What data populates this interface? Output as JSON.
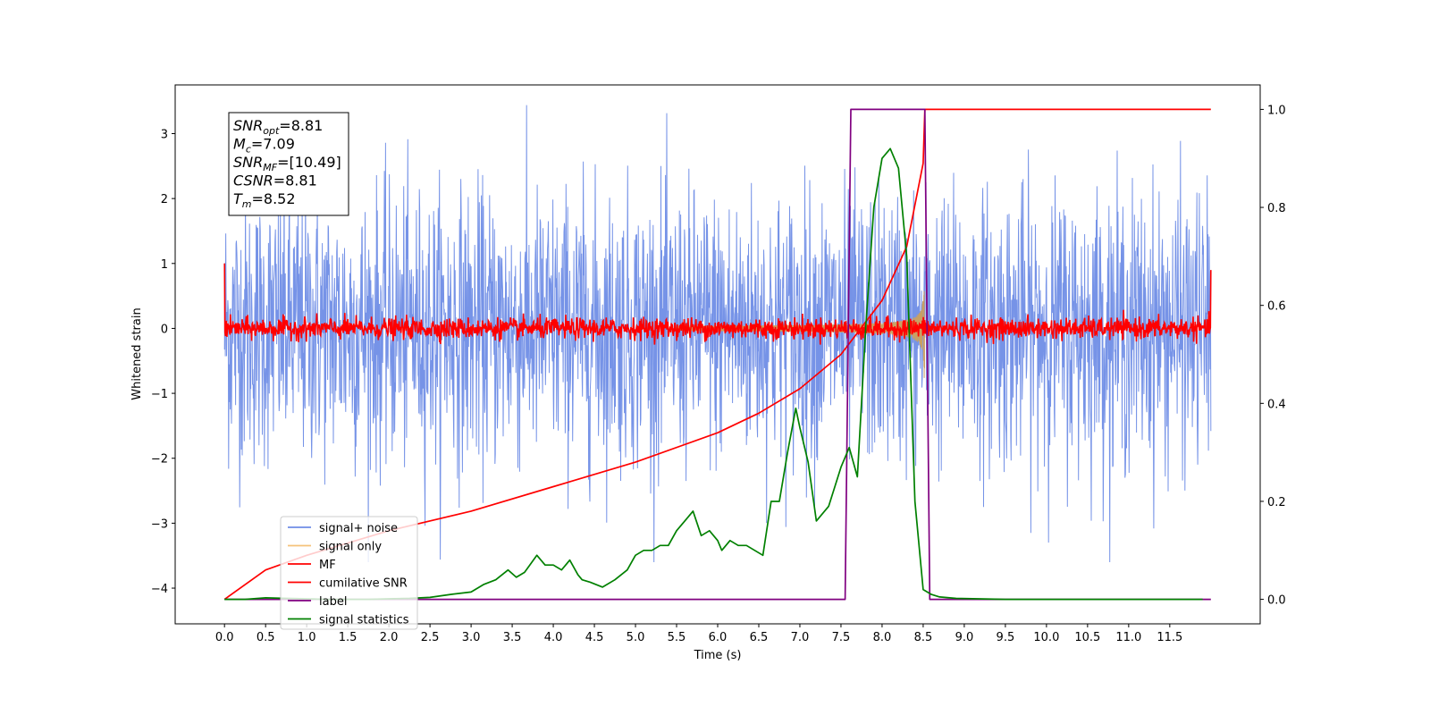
{
  "chart_data": {
    "type": "line",
    "xlabel": "Time (s)",
    "ylabel": "Whitened strain",
    "xlim": [
      -0.6,
      12.6
    ],
    "ylim": [
      -4.55,
      3.75
    ],
    "y2lim": [
      -0.05,
      1.05
    ],
    "x_ticks": [
      "0.0",
      "0.5",
      "1.0",
      "1.5",
      "2.0",
      "2.5",
      "3.0",
      "3.5",
      "4.0",
      "4.5",
      "5.0",
      "5.5",
      "6.0",
      "6.5",
      "7.0",
      "7.5",
      "8.0",
      "8.5",
      "9.0",
      "9.5",
      "10.0",
      "10.5",
      "11.0",
      "11.5"
    ],
    "y_ticks": [
      "3",
      "2",
      "1",
      "0",
      "−1",
      "−2",
      "−3",
      "−4"
    ],
    "y2_ticks": [
      "1.0",
      "0.8",
      "0.6",
      "0.4",
      "0.2",
      "0.0"
    ],
    "grid": false,
    "legend_position": "lower-left",
    "annotations": [
      {
        "main": "SNR",
        "sub": "opt",
        "value": "=8.81"
      },
      {
        "main": "M",
        "sub": "c",
        "value": "=7.09"
      },
      {
        "main": "SNR",
        "sub": "MF",
        "value": "=[10.49]"
      },
      {
        "main": "CSNR",
        "sub": "",
        "value": "=8.81"
      },
      {
        "main": "T",
        "sub": "m",
        "value": "=8.52"
      }
    ],
    "series": [
      {
        "name": "signal+ noise",
        "color": "#6f8de6",
        "axis": "left",
        "description_values": {
          "time_range": [
            0,
            12
          ],
          "amplitude_range": [
            -3.6,
            3.6
          ]
        }
      },
      {
        "name": "signal only",
        "color": "#f5c27a",
        "axis": "left",
        "chirp_end": 8.52,
        "max_amplitude": 0.8
      },
      {
        "name": "MF",
        "color": "#ff0000",
        "axis": "left",
        "time_range": [
          0,
          12
        ],
        "amplitude_range": [
          -0.25,
          0.3
        ]
      },
      {
        "name": "cumilative SNR",
        "color": "#ff0000",
        "axis": "right",
        "x": [
          0.0,
          0.5,
          1.0,
          2.0,
          3.0,
          4.0,
          5.0,
          6.0,
          6.5,
          7.0,
          7.5,
          8.0,
          8.3,
          8.5,
          8.52,
          12.0
        ],
        "values": [
          0.0,
          0.06,
          0.09,
          0.14,
          0.18,
          0.23,
          0.28,
          0.34,
          0.38,
          0.43,
          0.5,
          0.61,
          0.72,
          0.89,
          1.0,
          1.0
        ]
      },
      {
        "name": "label",
        "color": "#800080",
        "axis": "right",
        "x": [
          0.0,
          7.55,
          7.62,
          8.52,
          8.58,
          12.0
        ],
        "values": [
          0.0,
          0.0,
          1.0,
          1.0,
          0.0,
          0.0
        ]
      },
      {
        "name": "signal statistics",
        "color": "#008000",
        "axis": "right",
        "x": [
          0.0,
          0.25,
          0.5,
          0.75,
          1.0,
          1.25,
          1.5,
          1.75,
          2.0,
          2.25,
          2.5,
          2.75,
          3.0,
          3.15,
          3.3,
          3.45,
          3.55,
          3.65,
          3.8,
          3.9,
          4.0,
          4.1,
          4.2,
          4.3,
          4.35,
          4.45,
          4.6,
          4.75,
          4.9,
          5.0,
          5.1,
          5.2,
          5.3,
          5.4,
          5.5,
          5.6,
          5.7,
          5.8,
          5.9,
          6.0,
          6.05,
          6.15,
          6.25,
          6.35,
          6.45,
          6.55,
          6.65,
          6.75,
          6.85,
          6.95,
          7.0,
          7.1,
          7.2,
          7.35,
          7.5,
          7.6,
          7.7,
          7.8,
          7.9,
          8.0,
          8.1,
          8.2,
          8.3,
          8.4,
          8.5,
          8.6,
          8.7,
          8.9,
          9.5,
          10.0,
          10.5,
          11.0,
          11.5,
          11.9
        ],
        "values": [
          0.0,
          0.0,
          0.003,
          0.002,
          0.001,
          0.0,
          0.0,
          0.0,
          0.001,
          0.002,
          0.004,
          0.01,
          0.015,
          0.03,
          0.04,
          0.06,
          0.045,
          0.055,
          0.09,
          0.07,
          0.07,
          0.06,
          0.08,
          0.05,
          0.04,
          0.035,
          0.025,
          0.04,
          0.06,
          0.09,
          0.1,
          0.1,
          0.11,
          0.11,
          0.14,
          0.16,
          0.18,
          0.13,
          0.14,
          0.12,
          0.1,
          0.12,
          0.11,
          0.11,
          0.1,
          0.09,
          0.2,
          0.2,
          0.3,
          0.39,
          0.35,
          0.28,
          0.16,
          0.19,
          0.27,
          0.31,
          0.25,
          0.55,
          0.8,
          0.9,
          0.92,
          0.88,
          0.7,
          0.2,
          0.02,
          0.01,
          0.005,
          0.002,
          0.0,
          0.0,
          0.0,
          0.0,
          0.0,
          0.0
        ]
      }
    ]
  }
}
